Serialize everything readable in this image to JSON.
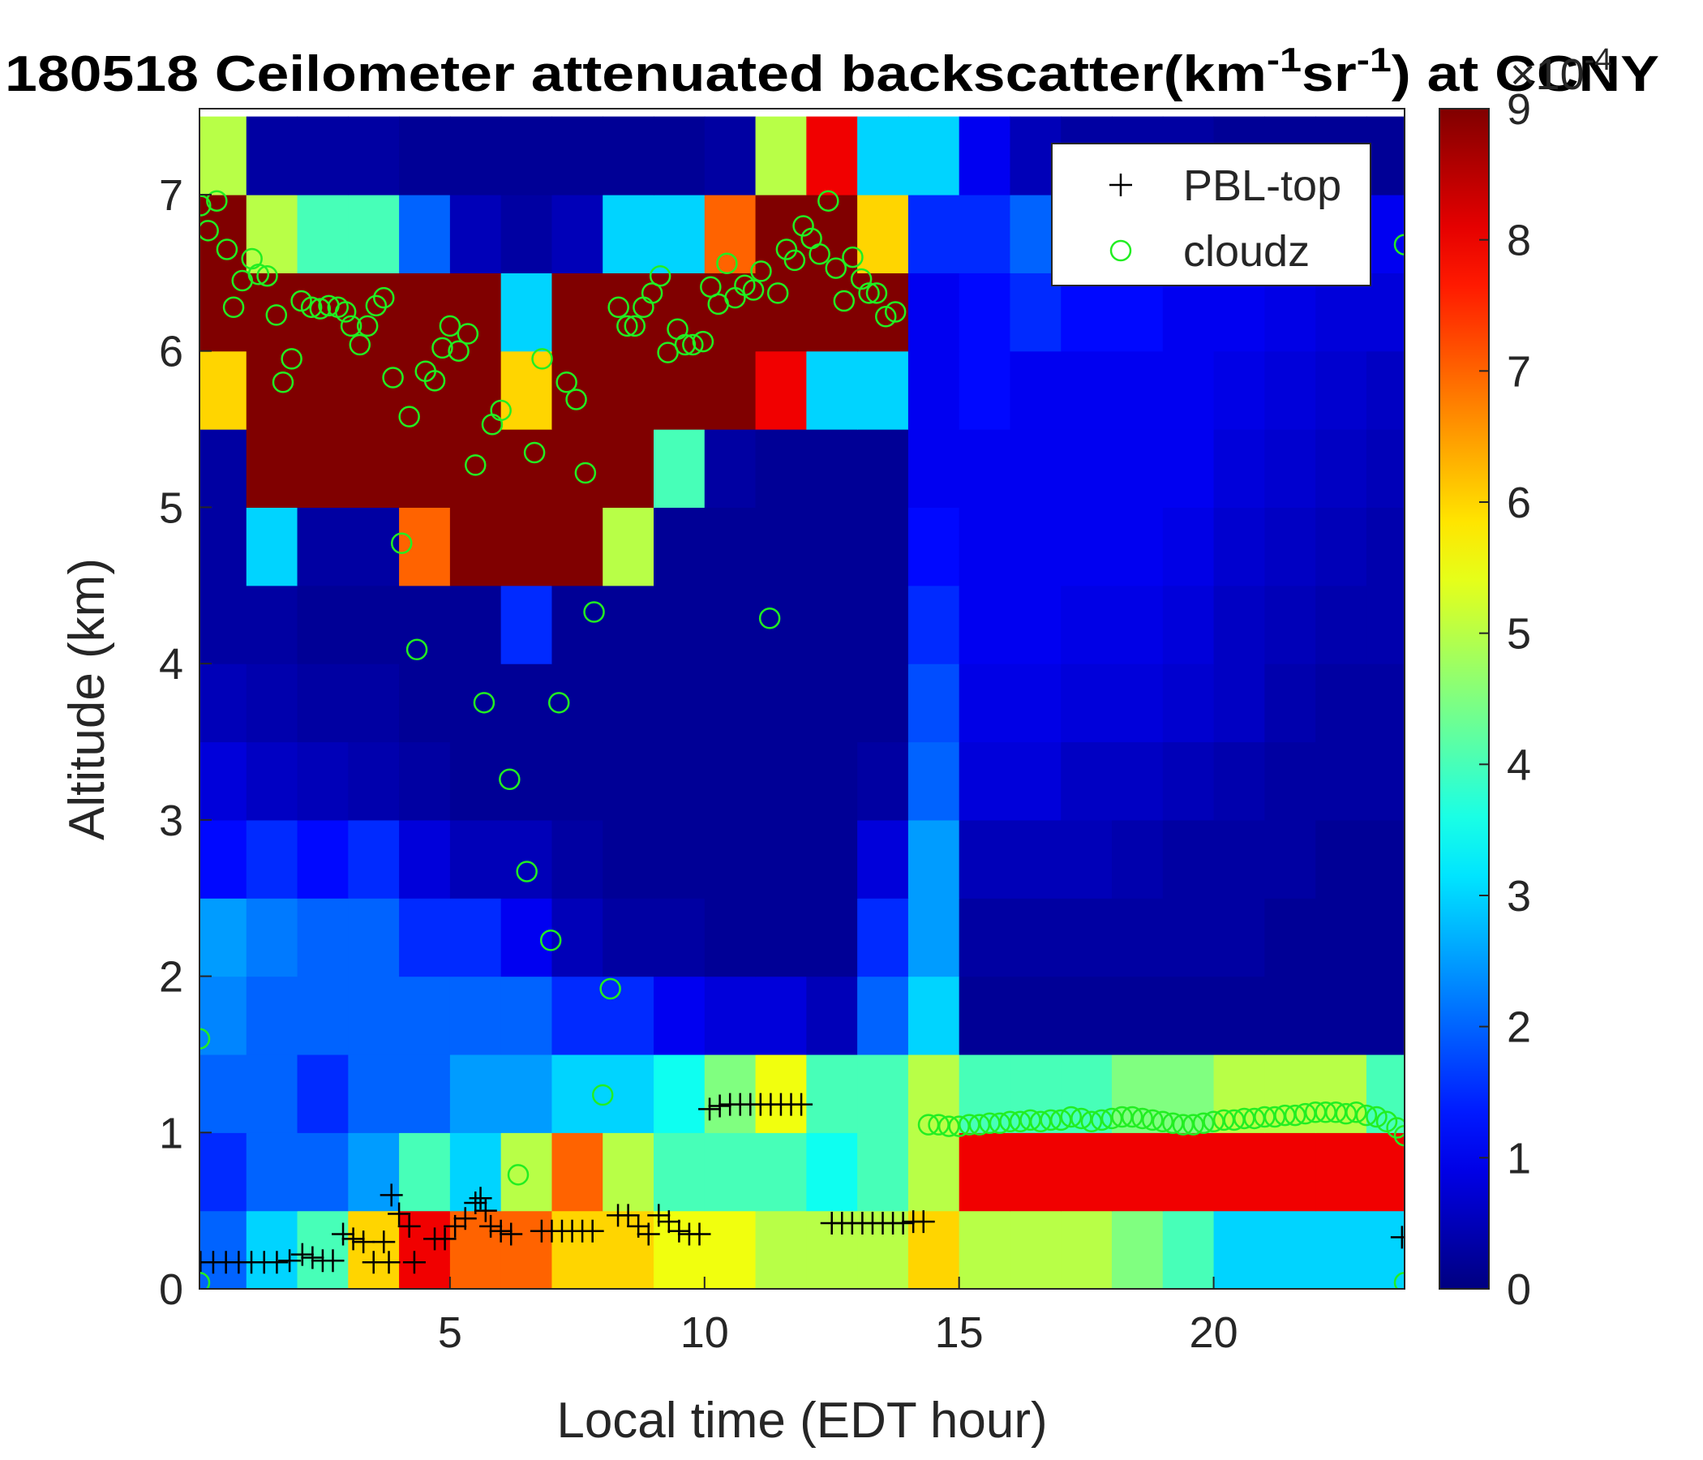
{
  "chart_data": {
    "type": "heatmap",
    "title": [
      "180518 Ceilometer attenuated backscatter(km",
      "-1",
      "sr",
      "-1",
      ") at CCNY"
    ],
    "x_label": "Local time (EDT hour)",
    "y_label": "Altitude (km)",
    "xlim": [
      0.08,
      23.75
    ],
    "ylim": [
      0,
      7.55
    ],
    "xticks": [
      5,
      10,
      15,
      20
    ],
    "yticks": [
      0,
      1,
      2,
      3,
      4,
      5,
      6,
      7
    ],
    "grid": false,
    "legend": "upper right",
    "heatmap": {
      "colormap": "jet",
      "clim": [
        0,
        9
      ],
      "cticks": [
        0,
        1,
        2,
        3,
        4,
        5,
        6,
        7,
        8,
        9
      ],
      "colorbar_label": [
        "×10",
        "-4"
      ],
      "x": [
        0.5,
        1.5,
        2.5,
        3.5,
        4.5,
        5.5,
        6.5,
        7.5,
        8.5,
        9.5,
        10.5,
        11.5,
        12.5,
        13.5,
        14.5,
        15.5,
        16.5,
        17.5,
        18.5,
        19.5,
        20.5,
        21.5,
        22.5,
        23.5
      ],
      "y": [
        0.25,
        0.75,
        1.25,
        1.75,
        2.25,
        2.75,
        3.25,
        3.75,
        4.25,
        4.75,
        5.25,
        5.75,
        6.25,
        6.75,
        7.25
      ],
      "z": [
        [
          2,
          3,
          4,
          6,
          8,
          7,
          7,
          6,
          6,
          5.5,
          5.5,
          5,
          5,
          5,
          6,
          5,
          5,
          5,
          4.5,
          4,
          3,
          3,
          3,
          3
        ],
        [
          1.5,
          2,
          2,
          2.5,
          4,
          3,
          5,
          7,
          5,
          4,
          4,
          4,
          3.5,
          4,
          5,
          8,
          8,
          8,
          8,
          8,
          8,
          8,
          8,
          8
        ],
        [
          2,
          2,
          1.5,
          2,
          2,
          2.5,
          2.5,
          3,
          3,
          3.5,
          4.5,
          5.5,
          4,
          4,
          5,
          4,
          4,
          4,
          4.5,
          4.5,
          5,
          5,
          5,
          4
        ],
        [
          2.3,
          2,
          2,
          2,
          2,
          2,
          2,
          1.5,
          1.5,
          1,
          0.8,
          0.8,
          0.5,
          2,
          3,
          0.2,
          0.2,
          0.2,
          0.2,
          0.2,
          0.2,
          0.2,
          0.2,
          0.2
        ],
        [
          2.5,
          2.2,
          2,
          2,
          1.5,
          1.5,
          1,
          0.5,
          0.3,
          0.3,
          0.2,
          0.2,
          0.2,
          1.5,
          2.5,
          0.3,
          0.3,
          0.3,
          0.3,
          0.3,
          0.3,
          0.2,
          0.2,
          0.2
        ],
        [
          1.2,
          1.5,
          1.2,
          1.5,
          0.8,
          0.5,
          0.5,
          0.3,
          0.2,
          0.2,
          0.2,
          0.2,
          0.2,
          0.8,
          2.5,
          0.5,
          0.5,
          0.5,
          0.4,
          0.3,
          0.3,
          0.3,
          0.2,
          0.2
        ],
        [
          0.8,
          0.6,
          0.5,
          0.4,
          0.3,
          0.2,
          0.2,
          0.2,
          0.2,
          0.2,
          0.2,
          0.2,
          0.2,
          0.3,
          2,
          0.8,
          0.8,
          0.6,
          0.6,
          0.5,
          0.4,
          0.3,
          0.3,
          0.3
        ],
        [
          0.5,
          0.4,
          0.3,
          0.3,
          0.2,
          0.2,
          0.2,
          0.2,
          0.2,
          0.2,
          0.2,
          0.2,
          0.2,
          0.2,
          1.8,
          0.9,
          0.9,
          0.8,
          0.8,
          0.7,
          0.6,
          0.4,
          0.3,
          0.3
        ],
        [
          0.3,
          0.3,
          0.2,
          0.2,
          0.2,
          0.2,
          1.5,
          0.2,
          0.2,
          0.2,
          0.2,
          0.2,
          0.2,
          0.2,
          1.5,
          1,
          1,
          0.9,
          0.9,
          0.8,
          0.6,
          0.5,
          0.4,
          0.4
        ],
        [
          0.3,
          3,
          0.3,
          0.3,
          7,
          9,
          9,
          9,
          5,
          0.2,
          0.2,
          0.2,
          0.2,
          0.2,
          1.2,
          1,
          1,
          1,
          1,
          0.9,
          0.7,
          0.6,
          0.5,
          0.4
        ],
        [
          0.3,
          9,
          9,
          9,
          9,
          9,
          9,
          9,
          9,
          4,
          0.3,
          0.2,
          0.2,
          0.2,
          1,
          1,
          1,
          1,
          1,
          1,
          0.8,
          0.7,
          0.6,
          0.5
        ],
        [
          6,
          9,
          9,
          9,
          9,
          9,
          6,
          9,
          9,
          9,
          9,
          8,
          3,
          3,
          1,
          1.2,
          1,
          1,
          1,
          1,
          0.9,
          0.8,
          0.7,
          0.6
        ],
        [
          9,
          9,
          9,
          9,
          9,
          9,
          3,
          9,
          9,
          9,
          9,
          9,
          9,
          9,
          1,
          1.2,
          1.5,
          1.2,
          1.2,
          1,
          1,
          0.9,
          0.8,
          0.8
        ],
        [
          9,
          5,
          4,
          4,
          2,
          0.5,
          0.3,
          0.5,
          3,
          3,
          7,
          9,
          9,
          6,
          1.5,
          1.5,
          2,
          1.5,
          0.8,
          0.5,
          0.5,
          0.5,
          0.5,
          1
        ],
        [
          5,
          0.3,
          0.3,
          0.3,
          0.2,
          0.2,
          0.2,
          0.2,
          0.2,
          0.2,
          0.3,
          5,
          8,
          3,
          3,
          1,
          0.5,
          0.3,
          0.3,
          0.3,
          0.2,
          0.2,
          0.2,
          0.2
        ]
      ]
    },
    "series": [
      {
        "name": "PBL-top",
        "color": "#000000",
        "marker": "+",
        "x": [
          0.1,
          0.35,
          0.6,
          0.85,
          1.1,
          1.35,
          1.6,
          1.85,
          2.1,
          2.3,
          2.5,
          2.7,
          2.9,
          3.1,
          3.3,
          3.5,
          3.7,
          3.8,
          3.85,
          4.0,
          4.2,
          4.3,
          4.7,
          4.9,
          5.1,
          5.3,
          5.5,
          5.6,
          5.7,
          5.8,
          6.0,
          6.2,
          6.8,
          7.0,
          7.2,
          7.4,
          7.6,
          7.8,
          8.3,
          8.5,
          8.7,
          8.9,
          9.1,
          9.3,
          9.5,
          9.7,
          9.9,
          10.1,
          10.3,
          10.5,
          10.7,
          10.9,
          11.1,
          11.3,
          11.5,
          11.7,
          11.9,
          12.5,
          12.7,
          12.9,
          13.1,
          13.3,
          13.5,
          13.7,
          13.9,
          14.1,
          14.3,
          23.7
        ],
        "values": [
          0.17,
          0.17,
          0.17,
          0.17,
          0.17,
          0.17,
          0.17,
          0.18,
          0.22,
          0.2,
          0.18,
          0.18,
          0.35,
          0.32,
          0.3,
          0.17,
          0.3,
          0.17,
          0.6,
          0.48,
          0.4,
          0.17,
          0.32,
          0.32,
          0.4,
          0.45,
          0.55,
          0.58,
          0.5,
          0.4,
          0.37,
          0.35,
          0.37,
          0.37,
          0.37,
          0.37,
          0.37,
          0.37,
          0.47,
          0.47,
          0.4,
          0.35,
          0.47,
          0.43,
          0.37,
          0.35,
          0.35,
          1.15,
          1.17,
          1.18,
          1.18,
          1.18,
          1.18,
          1.18,
          1.18,
          1.18,
          1.18,
          0.42,
          0.42,
          0.42,
          0.42,
          0.42,
          0.42,
          0.42,
          0.42,
          0.43,
          0.43,
          0.33
        ]
      },
      {
        "name": "cloudz",
        "color": "#22ee22",
        "marker": "o",
        "x": [
          0.1,
          0.25,
          0.42,
          0.62,
          0.75,
          0.92,
          1.11,
          1.24,
          1.41,
          1.59,
          1.72,
          1.89,
          2.08,
          2.28,
          2.45,
          2.62,
          2.8,
          2.95,
          3.06,
          3.23,
          3.38,
          3.55,
          3.7,
          3.88,
          4.05,
          4.2,
          4.35,
          4.52,
          4.7,
          4.85,
          5.0,
          5.17,
          5.35,
          5.5,
          5.67,
          5.83,
          6.0,
          6.17,
          6.34,
          6.51,
          6.66,
          6.81,
          6.98,
          7.14,
          7.29,
          7.48,
          7.66,
          7.83,
          8.0,
          8.15,
          8.31,
          8.48,
          8.63,
          8.8,
          8.97,
          9.13,
          9.28,
          9.47,
          9.62,
          9.77,
          9.97,
          10.12,
          10.27,
          10.44,
          10.6,
          10.79,
          10.96,
          11.11,
          11.28,
          11.44,
          11.61,
          11.77,
          11.94,
          12.1,
          12.26,
          12.43,
          12.58,
          12.74,
          12.91,
          13.08,
          13.23,
          13.38,
          13.56,
          13.75,
          0.08,
          0.08,
          23.75,
          23.75,
          23.75,
          14.4,
          14.6,
          14.8,
          15.0,
          15.2,
          15.4,
          15.6,
          15.8,
          16.0,
          16.2,
          16.4,
          16.6,
          16.8,
          17.0,
          17.2,
          17.4,
          17.6,
          17.8,
          18.0,
          18.2,
          18.4,
          18.6,
          18.8,
          19.0,
          19.2,
          19.4,
          19.6,
          19.8,
          20.0,
          20.2,
          20.4,
          20.6,
          20.8,
          21.0,
          21.2,
          21.4,
          21.6,
          21.8,
          22.0,
          22.2,
          22.4,
          22.6,
          22.8,
          23.0,
          23.2,
          23.4,
          23.6
        ],
        "values": [
          6.93,
          6.77,
          6.96,
          6.65,
          6.28,
          6.45,
          6.59,
          6.49,
          6.48,
          6.23,
          5.8,
          5.95,
          6.32,
          6.28,
          6.27,
          6.29,
          6.28,
          6.25,
          6.16,
          6.04,
          6.16,
          6.29,
          6.34,
          5.83,
          4.77,
          5.58,
          4.09,
          5.87,
          5.81,
          6.02,
          6.16,
          6.0,
          6.11,
          5.27,
          3.75,
          5.53,
          5.62,
          3.26,
          0.73,
          2.67,
          5.35,
          5.95,
          2.23,
          3.75,
          5.8,
          5.69,
          5.22,
          4.33,
          1.24,
          1.92,
          6.28,
          6.16,
          6.16,
          6.28,
          6.37,
          6.48,
          5.99,
          6.14,
          6.04,
          6.04,
          6.06,
          6.41,
          6.3,
          6.56,
          6.34,
          6.42,
          6.39,
          6.51,
          4.29,
          6.37,
          6.65,
          6.58,
          6.8,
          6.72,
          6.62,
          6.96,
          6.53,
          6.32,
          6.6,
          6.46,
          6.37,
          6.37,
          6.22,
          6.25,
          1.6,
          0.04,
          6.68,
          0.04,
          0.98,
          1.05,
          1.05,
          1.04,
          1.04,
          1.05,
          1.05,
          1.06,
          1.06,
          1.07,
          1.07,
          1.08,
          1.07,
          1.08,
          1.08,
          1.1,
          1.09,
          1.07,
          1.08,
          1.09,
          1.1,
          1.1,
          1.09,
          1.08,
          1.07,
          1.06,
          1.05,
          1.05,
          1.06,
          1.07,
          1.08,
          1.08,
          1.09,
          1.09,
          1.1,
          1.1,
          1.11,
          1.11,
          1.12,
          1.13,
          1.13,
          1.13,
          1.12,
          1.13,
          1.11,
          1.1,
          1.07,
          1.03
        ]
      }
    ]
  }
}
